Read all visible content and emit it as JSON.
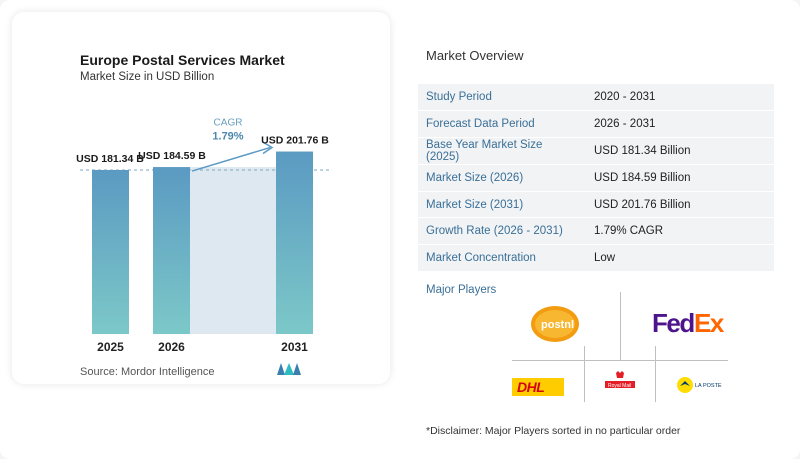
{
  "chart_data": {
    "type": "bar",
    "title": "Europe Postal Services Market",
    "subtitle": "Market Size in USD Billion",
    "categories": [
      "2025",
      "2026",
      "2031"
    ],
    "values": [
      181.34,
      184.59,
      201.76
    ],
    "value_labels": [
      "USD 181.34 B",
      "USD 184.59 B",
      "USD 201.76 B"
    ],
    "cagr_label": "CAGR",
    "cagr_value": "1.79%",
    "bar_color_top": "#5b9ac2",
    "bar_color_bottom": "#7cc8c8",
    "source": "Source: Mordor Intelligence"
  },
  "overview": {
    "title": "Market Overview",
    "rows": [
      {
        "key": "Study Period",
        "value": "2020 - 2031"
      },
      {
        "key": "Forecast Data Period",
        "value": "2026 - 2031"
      },
      {
        "key": "Base Year Market Size (2025)",
        "value": "USD 181.34 Billion"
      },
      {
        "key": "Market Size (2026)",
        "value": "USD 184.59 Billion"
      },
      {
        "key": "Market Size (2031)",
        "value": "USD 201.76 Billion"
      },
      {
        "key": "Growth Rate (2026 - 2031)",
        "value": "1.79% CAGR"
      },
      {
        "key": "Market Concentration",
        "value": "Low"
      }
    ],
    "players_label": "Major Players",
    "players": [
      {
        "name": "postnl",
        "icon": "postnl-logo"
      },
      {
        "name": "FedEx",
        "icon": "fedex-logo"
      },
      {
        "name": "DHL",
        "icon": "dhl-logo"
      },
      {
        "name": "Royal Mail",
        "icon": "royal-mail-logo"
      },
      {
        "name": "LA POSTE",
        "icon": "la-poste-logo"
      }
    ],
    "disclaimer": "*Disclaimer: Major Players sorted in no particular order"
  }
}
